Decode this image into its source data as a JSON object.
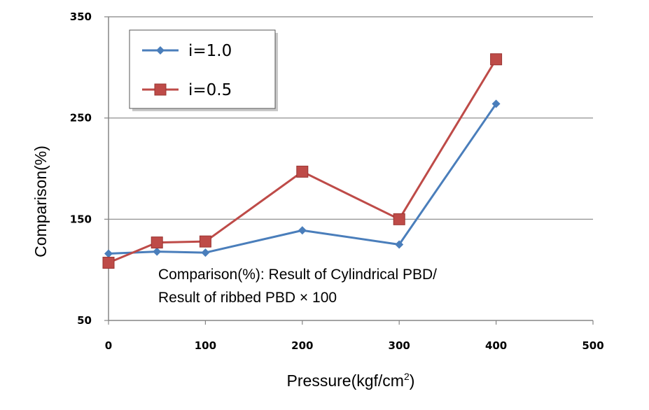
{
  "chart_data": {
    "type": "line",
    "xlabel": "Pressure(kgf/cm",
    "xlabel_sup": "2",
    "xlabel_end": ")",
    "ylabel": "Comparison(%)",
    "xlim": [
      0,
      500
    ],
    "ylim": [
      50,
      350
    ],
    "xticks": [
      "0",
      "100",
      "200",
      "300",
      "400",
      "500"
    ],
    "yticks": [
      "50",
      "150",
      "250",
      "350"
    ],
    "grid": "horizontal",
    "legend_position": "top-left",
    "series": [
      {
        "name": "i=1.0",
        "color": "#4a7ebb",
        "marker": "diamond",
        "x": [
          0,
          50,
          100,
          200,
          300,
          400
        ],
        "y": [
          116,
          118,
          117,
          139,
          125,
          264
        ]
      },
      {
        "name": "i=0.5",
        "color": "#be4b48",
        "marker": "square",
        "x": [
          0,
          50,
          100,
          200,
          300,
          400
        ],
        "y": [
          107,
          127,
          128,
          197,
          150,
          308
        ]
      }
    ],
    "annotation": [
      "Comparison(%): Result of Cylindrical PBD/",
      "Result of ribbed PBD × 100"
    ]
  }
}
